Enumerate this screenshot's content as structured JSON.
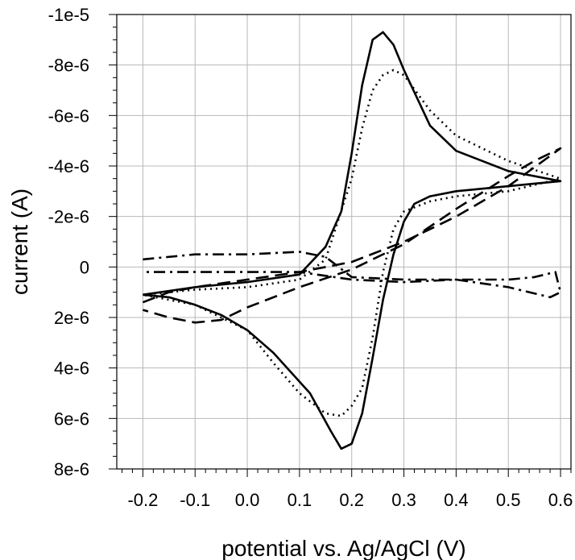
{
  "chart_data": {
    "type": "line",
    "title": "",
    "xlabel": "potential vs. Ag/AgCl (V)",
    "ylabel": "current (A)",
    "xlim": [
      -0.25,
      0.62
    ],
    "ylim": [
      8e-06,
      -1e-05
    ],
    "y_inverted": true,
    "grid": true,
    "x_ticks": [
      -0.2,
      -0.1,
      0.0,
      0.1,
      0.2,
      0.3,
      0.4,
      0.5,
      0.6
    ],
    "x_tick_labels": [
      "-0.2",
      "-0.1",
      "0.0",
      "0.1",
      "0.2",
      "0.3",
      "0.4",
      "0.5",
      "0.6"
    ],
    "y_ticks": [
      -1e-05,
      -8e-06,
      -6e-06,
      -4e-06,
      -2e-06,
      0,
      2e-06,
      4e-06,
      6e-06,
      8e-06
    ],
    "y_tick_labels": [
      "-1e-5",
      "-8e-6",
      "-6e-6",
      "-4e-6",
      "-2e-6",
      "0",
      "2e-6",
      "4e-6",
      "6e-6",
      "8e-6"
    ],
    "series": [
      {
        "name": "solid",
        "dash": "solid",
        "x": [
          -0.2,
          -0.1,
          0.0,
          0.1,
          0.15,
          0.18,
          0.2,
          0.22,
          0.24,
          0.26,
          0.28,
          0.3,
          0.35,
          0.4,
          0.5,
          0.6,
          0.5,
          0.4,
          0.35,
          0.32,
          0.3,
          0.28,
          0.26,
          0.24,
          0.22,
          0.2,
          0.18,
          0.16,
          0.12,
          0.05,
          0.0,
          -0.05,
          -0.1,
          -0.15,
          -0.2
        ],
        "y": [
          1.1e-06,
          8e-07,
          6e-07,
          3e-07,
          -8e-07,
          -2.2e-06,
          -4.5e-06,
          -7.2e-06,
          -9e-06,
          -9.3e-06,
          -8.8e-06,
          -7.8e-06,
          -5.6e-06,
          -4.6e-06,
          -3.8e-06,
          -3.4e-06,
          -3.2e-06,
          -3e-06,
          -2.8e-06,
          -2.5e-06,
          -1.8e-06,
          -5e-07,
          1.3e-06,
          3.6e-06,
          5.8e-06,
          7e-06,
          7.2e-06,
          6.5e-06,
          5e-06,
          3.4e-06,
          2.5e-06,
          1.9e-06,
          1.5e-06,
          1.2e-06,
          1.1e-06
        ]
      },
      {
        "name": "dotted",
        "dash": "dotted",
        "x": [
          -0.2,
          -0.1,
          0.0,
          0.1,
          0.15,
          0.2,
          0.22,
          0.24,
          0.26,
          0.28,
          0.3,
          0.35,
          0.4,
          0.5,
          0.6,
          0.5,
          0.4,
          0.35,
          0.3,
          0.28,
          0.26,
          0.24,
          0.22,
          0.2,
          0.18,
          0.15,
          0.1,
          0.05,
          0.0,
          -0.1,
          -0.2
        ],
        "y": [
          1.1e-06,
          9e-07,
          8e-07,
          5e-07,
          -3e-07,
          -3.5e-06,
          -5.5e-06,
          -7e-06,
          -7.6e-06,
          -7.8e-06,
          -7.6e-06,
          -6.2e-06,
          -5.2e-06,
          -4.2e-06,
          -3.5e-06,
          -3e-06,
          -2.8e-06,
          -2.6e-06,
          -2.2e-06,
          -1.5e-06,
          2e-07,
          2.8e-06,
          4.8e-06,
          5.5e-06,
          5.9e-06,
          5.8e-06,
          5e-06,
          3.8e-06,
          2.5e-06,
          1.5e-06,
          1.1e-06
        ]
      },
      {
        "name": "dashed",
        "dash": "dashed",
        "x": [
          -0.2,
          -0.15,
          -0.1,
          0.0,
          0.1,
          0.2,
          0.3,
          0.4,
          0.5,
          0.6,
          0.55,
          0.5,
          0.4,
          0.3,
          0.2,
          0.1,
          0.0,
          -0.05,
          -0.1,
          -0.15,
          -0.2
        ],
        "y": [
          1.4e-06,
          1e-06,
          8e-07,
          5e-07,
          2e-07,
          -2e-07,
          -1e-06,
          -2e-06,
          -3.2e-06,
          -4.7e-06,
          -4.2e-06,
          -3.6e-06,
          -2.3e-06,
          -9e-07,
          1e-07,
          8e-07,
          1.6e-06,
          2.1e-06,
          2.2e-06,
          2e-06,
          1.7e-06
        ]
      },
      {
        "name": "dash-dot",
        "dash": "dashdot",
        "x": [
          -0.2,
          -0.1,
          0.0,
          0.1,
          0.15,
          0.2,
          0.3,
          0.4,
          0.5,
          0.55,
          0.59,
          0.6,
          0.58,
          0.5,
          0.4,
          0.3,
          0.2,
          0.1,
          0.0,
          -0.1,
          -0.2
        ],
        "y": [
          -3e-07,
          -5e-07,
          -5e-07,
          -6e-07,
          -4e-07,
          4e-07,
          5e-07,
          5e-07,
          5e-07,
          4e-07,
          2e-07,
          1e-06,
          1.2e-06,
          8e-07,
          5e-07,
          6e-07,
          5e-07,
          2e-07,
          2e-07,
          2e-07,
          2e-07
        ]
      }
    ]
  }
}
